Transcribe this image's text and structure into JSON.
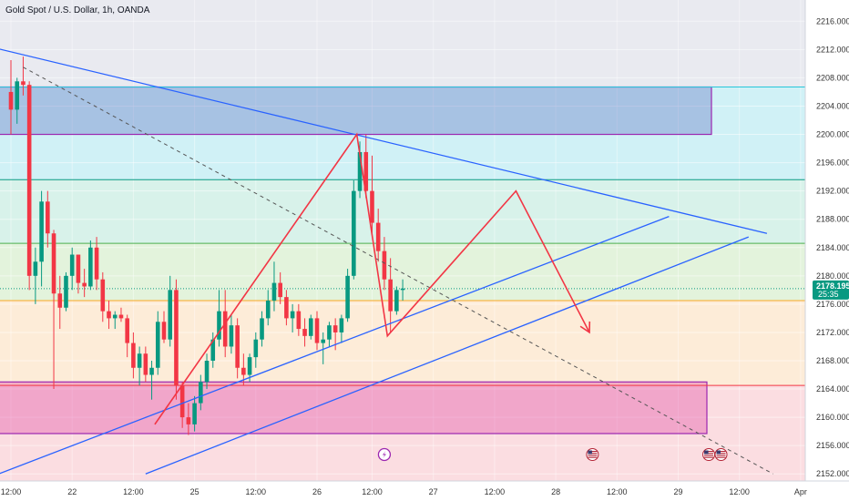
{
  "header": {
    "title": "Gold Spot / U.S. Dollar, 1h, OANDA"
  },
  "chart_data": {
    "type": "candlestick",
    "title": "Gold Spot / U.S. Dollar, 1h, OANDA",
    "symbol": "XAUUSD",
    "timeframe": "1h",
    "ylim": [
      2151,
      2219
    ],
    "y_ticks": [
      2216,
      2212,
      2208,
      2204,
      2200,
      2196,
      2192,
      2188,
      2184,
      2180,
      2176,
      2172,
      2168,
      2164,
      2160,
      2156,
      2152
    ],
    "y_tick_labels": [
      "2216.000",
      "2212.000",
      "2208.000",
      "2204.000",
      "2200.000",
      "2196.000",
      "2192.000",
      "2188.000",
      "2184.000",
      "2180.000",
      "2176.000",
      "2172.000",
      "2168.000",
      "2164.000",
      "2160.000",
      "2156.000",
      "2152.000"
    ],
    "x_ticks": [
      "12:00",
      "22",
      "12:00",
      "25",
      "12:00",
      "26",
      "12:00",
      "27",
      "12:00",
      "28",
      "12:00",
      "29",
      "12:00",
      "Apr"
    ],
    "x_tick_bars": [
      0,
      10,
      20,
      30,
      40,
      50,
      59,
      69,
      79,
      89,
      99,
      109,
      119,
      129
    ],
    "current_price": {
      "label": "2178.195",
      "countdown": "25:35",
      "value": 2178.195,
      "color": "#089981"
    },
    "colors": {
      "up": "#089981",
      "down": "#f23645",
      "trendline": "#2962ff",
      "projection": "#f23645",
      "zone_border": "#9c27b0"
    },
    "candles": [
      [
        2206.0,
        2210.5,
        2200.0,
        2203.5
      ],
      [
        2203.5,
        2208.0,
        2201.5,
        2207.5
      ],
      [
        2207.5,
        2211.0,
        2205.5,
        2207.0
      ],
      [
        2207.0,
        2207.5,
        2178.0,
        2180.0
      ],
      [
        2180.0,
        2184.0,
        2176.0,
        2182.0
      ],
      [
        2182.0,
        2192.0,
        2178.5,
        2190.5
      ],
      [
        2190.5,
        2192.0,
        2184.0,
        2186.0
      ],
      [
        2186.0,
        2186.5,
        2164.0,
        2177.5
      ],
      [
        2177.5,
        2180.0,
        2172.5,
        2175.5
      ],
      [
        2175.5,
        2180.5,
        2175.0,
        2180.0
      ],
      [
        2180.0,
        2184.0,
        2178.0,
        2183.0
      ],
      [
        2183.0,
        2183.0,
        2177.5,
        2179.0
      ],
      [
        2179.0,
        2181.0,
        2177.0,
        2178.5
      ],
      [
        2178.5,
        2185.0,
        2178.0,
        2184.0
      ],
      [
        2184.0,
        2185.5,
        2178.0,
        2179.5
      ],
      [
        2179.5,
        2180.5,
        2173.5,
        2175.0
      ],
      [
        2175.0,
        2176.5,
        2172.5,
        2174.0
      ],
      [
        2174.0,
        2175.0,
        2172.5,
        2174.5
      ],
      [
        2174.5,
        2175.5,
        2173.5,
        2174.0
      ],
      [
        2174.0,
        2174.5,
        2168.5,
        2170.5
      ],
      [
        2170.5,
        2172.0,
        2165.5,
        2167.0
      ],
      [
        2167.0,
        2170.0,
        2164.5,
        2169.0
      ],
      [
        2169.0,
        2170.0,
        2165.0,
        2166.0
      ],
      [
        2166.0,
        2168.0,
        2162.5,
        2167.0
      ],
      [
        2167.0,
        2175.0,
        2166.0,
        2173.5
      ],
      [
        2173.5,
        2175.0,
        2170.5,
        2171.0
      ],
      [
        2171.0,
        2180.0,
        2170.0,
        2178.0
      ],
      [
        2178.0,
        2179.5,
        2162.5,
        2164.5
      ],
      [
        2164.5,
        2165.0,
        2158.5,
        2160.0
      ],
      [
        2160.0,
        2162.0,
        2157.5,
        2159.0
      ],
      [
        2159.0,
        2163.0,
        2158.0,
        2162.0
      ],
      [
        2162.0,
        2166.0,
        2161.0,
        2165.0
      ],
      [
        2165.0,
        2169.0,
        2164.0,
        2168.0
      ],
      [
        2168.0,
        2172.0,
        2167.0,
        2171.0
      ],
      [
        2171.0,
        2178.0,
        2170.0,
        2175.0
      ],
      [
        2175.0,
        2178.0,
        2168.5,
        2170.0
      ],
      [
        2170.0,
        2174.5,
        2169.0,
        2173.0
      ],
      [
        2173.0,
        2174.0,
        2165.5,
        2167.0
      ],
      [
        2167.0,
        2169.0,
        2164.5,
        2166.0
      ],
      [
        2166.0,
        2169.0,
        2165.0,
        2168.5
      ],
      [
        2168.5,
        2172.0,
        2167.0,
        2171.0
      ],
      [
        2171.0,
        2175.0,
        2170.0,
        2174.0
      ],
      [
        2174.0,
        2178.0,
        2173.0,
        2176.5
      ],
      [
        2176.5,
        2182.0,
        2175.0,
        2179.0
      ],
      [
        2179.0,
        2180.5,
        2176.0,
        2177.0
      ],
      [
        2177.0,
        2178.0,
        2173.0,
        2174.0
      ],
      [
        2174.0,
        2176.0,
        2172.0,
        2175.0
      ],
      [
        2175.0,
        2176.0,
        2171.5,
        2172.5
      ],
      [
        2172.5,
        2174.0,
        2170.0,
        2171.5
      ],
      [
        2171.5,
        2174.5,
        2171.0,
        2174.0
      ],
      [
        2174.0,
        2175.0,
        2169.5,
        2170.5
      ],
      [
        2170.5,
        2172.0,
        2167.5,
        2171.0
      ],
      [
        2171.0,
        2173.5,
        2170.0,
        2173.0
      ],
      [
        2173.0,
        2174.0,
        2169.5,
        2172.0
      ],
      [
        2172.0,
        2174.5,
        2170.5,
        2174.0
      ],
      [
        2174.0,
        2181.0,
        2173.5,
        2180.0
      ],
      [
        2180.0,
        2193.5,
        2179.5,
        2192.0
      ],
      [
        2192.0,
        2199.0,
        2191.0,
        2197.5
      ],
      [
        2197.5,
        2200.0,
        2191.0,
        2192.0
      ],
      [
        2192.0,
        2197.0,
        2186.0,
        2187.5
      ],
      [
        2187.5,
        2189.5,
        2182.0,
        2183.5
      ],
      [
        2183.5,
        2185.5,
        2178.0,
        2179.5
      ],
      [
        2179.5,
        2182.5,
        2172.0,
        2175.0
      ],
      [
        2175.0,
        2178.5,
        2174.5,
        2178.0
      ],
      [
        2178.0,
        2179.5,
        2176.5,
        2178.2
      ]
    ],
    "zones": [
      {
        "name": "supply-zone",
        "from": 2200.0,
        "to": 2206.7,
        "color": "#5c6bc0"
      },
      {
        "name": "demand-zone",
        "from": 2157.7,
        "to": 2165.0,
        "color": "#e040a0"
      }
    ],
    "levels": [
      {
        "value": 2206.7,
        "color": "#26c6da"
      },
      {
        "value": 2193.6,
        "color": "#089981"
      },
      {
        "value": 2184.6,
        "color": "#4caf50"
      },
      {
        "value": 2176.5,
        "color": "#f9a825"
      },
      {
        "value": 2164.5,
        "color": "#f23645"
      }
    ],
    "trendlines": [
      {
        "name": "upper-triangle-line",
        "points": [
          [
            -3,
            2212.3
          ],
          [
            123.5,
            2186.0
          ]
        ],
        "color": "#2962ff",
        "dashed": false
      },
      {
        "name": "middle-channel-line",
        "points": [
          [
            -2,
            2152.0
          ],
          [
            107.5,
            2188.4
          ]
        ],
        "color": "#2962ff",
        "dashed": false
      },
      {
        "name": "lower-channel-line",
        "points": [
          [
            22,
            2152.0
          ],
          [
            120.5,
            2185.5
          ]
        ],
        "color": "#2962ff",
        "dashed": false
      },
      {
        "name": "descending-dashed-line",
        "points": [
          [
            2,
            2209.5
          ],
          [
            124.5,
            2152.0
          ]
        ],
        "color": "#555555",
        "dashed": true
      }
    ],
    "projection": {
      "points": [
        [
          23.5,
          2159.0
        ],
        [
          56.5,
          2200.0
        ],
        [
          61.5,
          2171.5
        ],
        [
          82.5,
          2192.0
        ],
        [
          94.5,
          2172.0
        ]
      ],
      "color": "#f23645",
      "arrow": true
    },
    "event_markers": [
      {
        "type": "lightning",
        "at_bar": 61,
        "color": "#9c27b0"
      },
      {
        "type": "us-flag",
        "at_bar": 95
      },
      {
        "type": "us-flag",
        "at_bar": 114
      },
      {
        "type": "us-flag",
        "at_bar": 116
      }
    ]
  }
}
